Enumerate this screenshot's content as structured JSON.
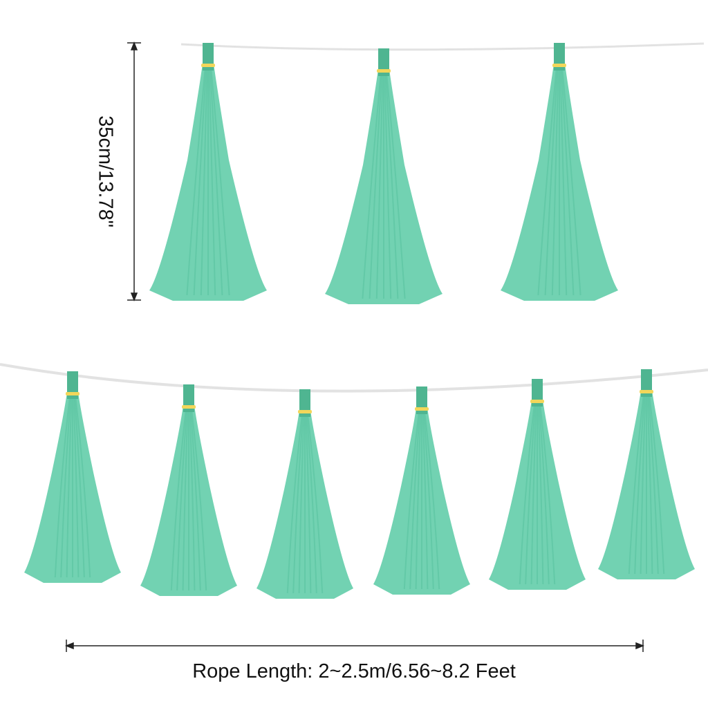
{
  "dimensions": {
    "height_label": "35cm/13.78\"",
    "rope_length_label": "Rope Length: 2~2.5m/6.56~8.2 Feet"
  },
  "colors": {
    "tassel": "#72d2b2",
    "tassel_shade": "#5cc4a2",
    "tab": "#4fb591",
    "clip": "#f2d65a",
    "rope": "#e4e4e4",
    "dimension_line": "#222222"
  }
}
